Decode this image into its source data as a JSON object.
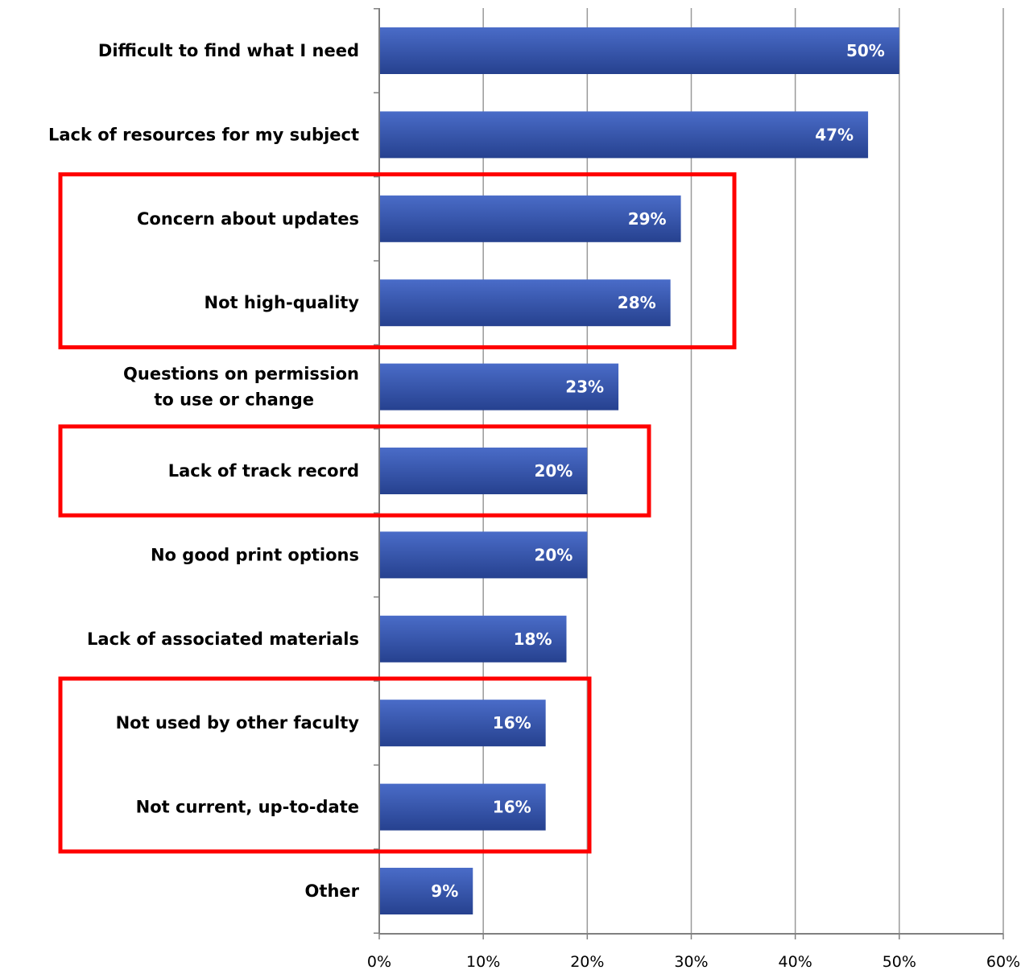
{
  "chart_data": {
    "type": "bar",
    "orientation": "horizontal",
    "categories": [
      [
        "Difficult to find what I need"
      ],
      [
        "Lack of resources for my subject"
      ],
      [
        "Concern  about updates"
      ],
      [
        "Not high-quality"
      ],
      [
        "Questions on permission",
        "to use or change"
      ],
      [
        "Lack of track record"
      ],
      [
        "No good print options"
      ],
      [
        "Lack of associated materials"
      ],
      [
        "Not used by other faculty"
      ],
      [
        "Not current, up-to-date"
      ],
      [
        "Other"
      ]
    ],
    "values": [
      50,
      47,
      29,
      28,
      23,
      20,
      20,
      18,
      16,
      16,
      9
    ],
    "value_labels": [
      "50%",
      "47%",
      "29%",
      "28%",
      "23%",
      "20%",
      "20%",
      "18%",
      "16%",
      "16%",
      "9%"
    ],
    "xlim": [
      0,
      60
    ],
    "x_ticks": [
      0,
      10,
      20,
      30,
      40,
      50,
      60
    ],
    "x_tick_labels": [
      "0%",
      "10%",
      "20%",
      "30%",
      "40%",
      "50%",
      "60%"
    ],
    "grid": "vertical",
    "highlight_groups": [
      {
        "start": 2,
        "end": 3
      },
      {
        "start": 5,
        "end": 5
      },
      {
        "start": 8,
        "end": 9
      }
    ]
  },
  "colors": {
    "bar_top": "#4a6cc8",
    "bar_bottom": "#26418f",
    "highlight_box": "#ff0000",
    "grid": "#9a9a9a",
    "axis": "#808080"
  }
}
